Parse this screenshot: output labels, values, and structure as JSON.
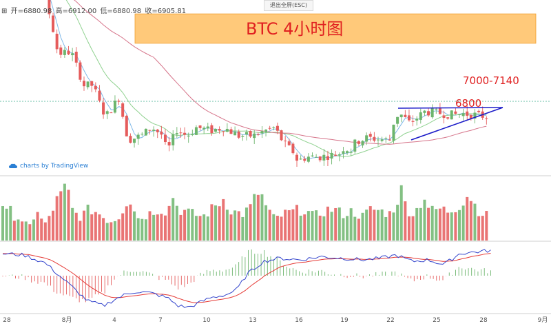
{
  "ohlc": {
    "open_label": "开=6880.98",
    "high_label": "高=6912.00",
    "low_label": "低=6880.98",
    "close_label": "收=6905.81"
  },
  "exit_fullscreen_label": "退出全屏(ESC)",
  "title": "BTC 4小时图",
  "resistance_zone_label": "7000-7140",
  "level_label": "6800",
  "brand": "charts by TradingView",
  "colors": {
    "up": "#6db56d",
    "down": "#e55c5c",
    "zone": "#ffb74d",
    "trend": "#1a1ac8",
    "dotted_line": "#3aaa8a",
    "ma_short": "#7fb8e8",
    "ma_mid": "#8fd18f",
    "ma_long": "#d6748a",
    "macd": "#3344cc",
    "signal": "#e53935"
  },
  "chart_data": {
    "type": "candlestick",
    "price_range": [
      6380,
      7160
    ],
    "x_tick_labels": [
      "28",
      "8月",
      "4",
      "7",
      "10",
      "13",
      "16",
      "19",
      "22",
      "25",
      "28",
      "9月"
    ],
    "last_ohlc": {
      "open": 6880.98,
      "high": 6912.0,
      "low": 6880.98,
      "close": 6905.81
    },
    "resistance_zone": [
      7000,
      7140
    ],
    "level": 6800,
    "close_path": [
      [
        0,
        7350
      ],
      [
        14,
        7390
      ],
      [
        24,
        7380
      ],
      [
        37,
        7330
      ],
      [
        52,
        7120
      ],
      [
        60,
        6950
      ],
      [
        74,
        6960
      ],
      [
        88,
        6800
      ],
      [
        98,
        6800
      ],
      [
        108,
        6680
      ],
      [
        113,
        6660
      ],
      [
        126,
        6740
      ],
      [
        136,
        6540
      ],
      [
        150,
        6560
      ],
      [
        162,
        6600
      ],
      [
        174,
        6560
      ],
      [
        178,
        6480
      ],
      [
        189,
        6590
      ],
      [
        200,
        6560
      ],
      [
        210,
        6600
      ],
      [
        226,
        6585
      ],
      [
        240,
        6600
      ],
      [
        256,
        6560
      ],
      [
        272,
        6560
      ],
      [
        288,
        6590
      ],
      [
        295,
        6600
      ],
      [
        300,
        6560
      ],
      [
        306,
        6520
      ],
      [
        316,
        6480
      ],
      [
        320,
        6440
      ],
      [
        330,
        6460
      ],
      [
        345,
        6460
      ],
      [
        359,
        6470
      ],
      [
        368,
        6480
      ],
      [
        371,
        6520
      ],
      [
        376,
        6480
      ],
      [
        383,
        6530
      ],
      [
        395,
        6550
      ],
      [
        407,
        6545
      ],
      [
        420,
        6540
      ],
      [
        424,
        6620
      ],
      [
        430,
        6670
      ],
      [
        437,
        6640
      ],
      [
        440,
        6620
      ],
      [
        445,
        6630
      ],
      [
        458,
        6675
      ],
      [
        472,
        6670
      ],
      [
        485,
        6660
      ],
      [
        500,
        6665
      ],
      [
        512,
        6660
      ],
      [
        527,
        6650
      ]
    ],
    "volume_profile": [
      [
        0,
        0.55
      ],
      [
        3,
        0.85
      ],
      [
        6,
        0.4
      ],
      [
        10,
        0.3
      ],
      [
        14,
        0.35
      ],
      [
        18,
        0.5
      ],
      [
        22,
        0.3
      ],
      [
        27,
        0.7
      ],
      [
        30,
        0.85
      ],
      [
        33,
        1.0
      ],
      [
        36,
        0.55
      ],
      [
        40,
        0.45
      ],
      [
        45,
        0.6
      ],
      [
        50,
        0.5
      ],
      [
        55,
        0.35
      ],
      [
        60,
        0.45
      ],
      [
        65,
        0.85
      ],
      [
        70,
        0.4
      ],
      [
        75,
        0.5
      ],
      [
        80,
        0.6
      ],
      [
        85,
        0.55
      ],
      [
        88,
        0.9
      ],
      [
        90,
        0.6
      ],
      [
        94,
        0.55
      ],
      [
        98,
        0.5
      ],
      [
        103,
        0.45
      ],
      [
        108,
        0.6
      ],
      [
        114,
        0.8
      ],
      [
        118,
        0.55
      ],
      [
        124,
        0.5
      ],
      [
        128,
        0.65
      ],
      [
        132,
        0.95
      ],
      [
        136,
        0.6
      ],
      [
        140,
        0.4
      ],
      [
        145,
        0.5
      ],
      [
        150,
        0.55
      ],
      [
        155,
        0.6
      ],
      [
        160,
        0.45
      ],
      [
        165,
        0.55
      ],
      [
        170,
        0.6
      ],
      [
        175,
        0.5
      ],
      [
        180,
        0.55
      ],
      [
        185,
        0.45
      ],
      [
        190,
        0.6
      ],
      [
        195,
        0.55
      ],
      [
        200,
        0.5
      ],
      [
        205,
        0.95
      ],
      [
        208,
        0.6
      ],
      [
        212,
        0.5
      ],
      [
        217,
        0.85
      ],
      [
        220,
        0.55
      ],
      [
        225,
        0.6
      ],
      [
        230,
        0.55
      ],
      [
        236,
        0.7
      ],
      [
        240,
        0.9
      ],
      [
        244,
        0.6
      ],
      [
        250,
        0.45
      ]
    ],
    "macd_path": [
      [
        0,
        0.7
      ],
      [
        20,
        0.65
      ],
      [
        40,
        0.4
      ],
      [
        60,
        -0.2
      ],
      [
        80,
        -0.8
      ],
      [
        95,
        -0.95
      ],
      [
        105,
        -0.75
      ],
      [
        115,
        -0.6
      ],
      [
        125,
        -0.5
      ],
      [
        140,
        -0.55
      ],
      [
        155,
        -0.7
      ],
      [
        165,
        -0.95
      ],
      [
        175,
        -1.0
      ],
      [
        185,
        -0.85
      ],
      [
        195,
        -0.7
      ],
      [
        210,
        -0.6
      ],
      [
        220,
        -0.45
      ],
      [
        230,
        0.05
      ],
      [
        245,
        0.45
      ],
      [
        260,
        0.55
      ],
      [
        280,
        0.5
      ],
      [
        300,
        0.6
      ],
      [
        320,
        0.55
      ],
      [
        340,
        0.5
      ],
      [
        355,
        0.55
      ],
      [
        370,
        0.65
      ],
      [
        385,
        0.45
      ],
      [
        400,
        0.5
      ],
      [
        415,
        0.35
      ],
      [
        430,
        0.7
      ],
      [
        445,
        0.75
      ],
      [
        460,
        0.8
      ]
    ]
  }
}
